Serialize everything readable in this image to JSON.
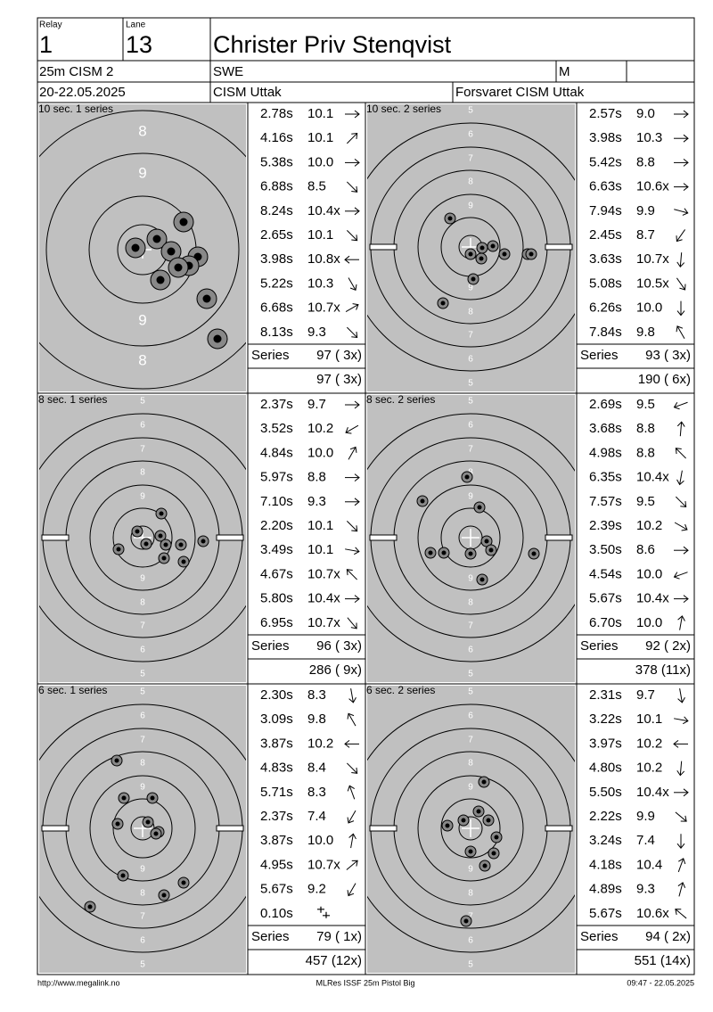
{
  "header": {
    "relay_label": "Relay",
    "relay": "1",
    "lane_label": "Lane",
    "lane": "13",
    "name": "Christer Priv Stenqvist",
    "event": "25m CISM 2",
    "nation": "SWE",
    "gender": "M",
    "date": "20-22.05.2025",
    "club": "CISM Uttak",
    "team": "Forsvaret CISM Uttak"
  },
  "series": [
    {
      "title": "10 sec. 1 series",
      "ring_labels_top": [
        "8",
        "9"
      ],
      "ring_labels_bottom": [
        "9",
        "8"
      ],
      "shots": [
        {
          "time": "2.78s",
          "score": "10.1"
        },
        {
          "time": "4.16s",
          "score": "10.1"
        },
        {
          "time": "5.38s",
          "score": "10.0"
        },
        {
          "time": "6.88s",
          "score": "8.5"
        },
        {
          "time": "8.24s",
          "score": "10.4x"
        },
        {
          "time": "2.65s",
          "score": "10.1"
        },
        {
          "time": "3.98s",
          "score": "10.8x"
        },
        {
          "time": "5.22s",
          "score": "10.3"
        },
        {
          "time": "6.68s",
          "score": "10.7x"
        },
        {
          "time": "8.13s",
          "score": "9.3"
        }
      ],
      "series_label": "Series",
      "series_total": "97 ( 3x)",
      "cumulative": "97 ( 3x)"
    },
    {
      "title": "10 sec. 2 series",
      "ring_labels_top": [
        "5",
        "6",
        "7",
        "8",
        "9"
      ],
      "ring_labels_bottom": [
        "9",
        "8",
        "7",
        "6",
        "5"
      ],
      "shots": [
        {
          "time": "2.57s",
          "score": "9.0"
        },
        {
          "time": "3.98s",
          "score": "10.3"
        },
        {
          "time": "5.42s",
          "score": "8.8"
        },
        {
          "time": "6.63s",
          "score": "10.6x"
        },
        {
          "time": "7.94s",
          "score": "9.9"
        },
        {
          "time": "2.45s",
          "score": "8.7"
        },
        {
          "time": "3.63s",
          "score": "10.7x"
        },
        {
          "time": "5.08s",
          "score": "10.5x"
        },
        {
          "time": "6.26s",
          "score": "10.0"
        },
        {
          "time": "7.84s",
          "score": "9.8"
        }
      ],
      "series_label": "Series",
      "series_total": "93 ( 3x)",
      "cumulative": "190 ( 6x)"
    },
    {
      "title": "8 sec. 1 series",
      "ring_labels_top": [
        "5",
        "6",
        "7",
        "8",
        "9"
      ],
      "ring_labels_bottom": [
        "9",
        "8",
        "7",
        "6",
        "5"
      ],
      "shots": [
        {
          "time": "2.37s",
          "score": "9.7"
        },
        {
          "time": "3.52s",
          "score": "10.2"
        },
        {
          "time": "4.84s",
          "score": "10.0"
        },
        {
          "time": "5.97s",
          "score": "8.8"
        },
        {
          "time": "7.10s",
          "score": "9.3"
        },
        {
          "time": "2.20s",
          "score": "10.1"
        },
        {
          "time": "3.49s",
          "score": "10.1"
        },
        {
          "time": "4.67s",
          "score": "10.7x"
        },
        {
          "time": "5.80s",
          "score": "10.4x"
        },
        {
          "time": "6.95s",
          "score": "10.7x"
        }
      ],
      "series_label": "Series",
      "series_total": "96 ( 3x)",
      "cumulative": "286 ( 9x)"
    },
    {
      "title": "8 sec. 2 series",
      "ring_labels_top": [
        "5",
        "6",
        "7",
        "8",
        "9"
      ],
      "ring_labels_bottom": [
        "9",
        "8",
        "7",
        "6",
        "5"
      ],
      "shots": [
        {
          "time": "2.69s",
          "score": "9.5"
        },
        {
          "time": "3.68s",
          "score": "8.8"
        },
        {
          "time": "4.98s",
          "score": "8.8"
        },
        {
          "time": "6.35s",
          "score": "10.4x"
        },
        {
          "time": "7.57s",
          "score": "9.5"
        },
        {
          "time": "2.39s",
          "score": "10.2"
        },
        {
          "time": "3.50s",
          "score": "8.6"
        },
        {
          "time": "4.54s",
          "score": "10.0"
        },
        {
          "time": "5.67s",
          "score": "10.4x"
        },
        {
          "time": "6.70s",
          "score": "10.0"
        }
      ],
      "series_label": "Series",
      "series_total": "92 ( 2x)",
      "cumulative": "378 (11x)"
    },
    {
      "title": "6 sec. 1 series",
      "ring_labels_top": [
        "5",
        "6",
        "7",
        "8",
        "9"
      ],
      "ring_labels_bottom": [
        "9",
        "8",
        "7",
        "6",
        "5"
      ],
      "shots": [
        {
          "time": "2.30s",
          "score": "8.3"
        },
        {
          "time": "3.09s",
          "score": "9.8"
        },
        {
          "time": "3.87s",
          "score": "10.2"
        },
        {
          "time": "4.83s",
          "score": "8.4"
        },
        {
          "time": "5.71s",
          "score": "8.3"
        },
        {
          "time": "2.37s",
          "score": "7.4"
        },
        {
          "time": "3.87s",
          "score": "10.0"
        },
        {
          "time": "4.95s",
          "score": "10.7x"
        },
        {
          "time": "5.67s",
          "score": "9.2"
        },
        {
          "time": "0.10s"
        }
      ],
      "series_label": "Series",
      "series_total": "79 ( 1x)",
      "cumulative": "457 (12x)"
    },
    {
      "title": "6 sec. 2 series",
      "ring_labels_top": [
        "5",
        "6",
        "7",
        "8",
        "9"
      ],
      "ring_labels_bottom": [
        "9",
        "8",
        "7",
        "6",
        "5"
      ],
      "shots": [
        {
          "time": "2.31s",
          "score": "9.7"
        },
        {
          "time": "3.22s",
          "score": "10.1"
        },
        {
          "time": "3.97s",
          "score": "10.2"
        },
        {
          "time": "4.80s",
          "score": "10.2"
        },
        {
          "time": "5.50s",
          "score": "10.4x"
        },
        {
          "time": "2.22s",
          "score": "9.9"
        },
        {
          "time": "3.24s",
          "score": "7.4"
        },
        {
          "time": "4.18s",
          "score": "10.4"
        },
        {
          "time": "4.89s",
          "score": "9.3"
        },
        {
          "time": "5.67s",
          "score": "10.6x"
        }
      ],
      "series_label": "Series",
      "series_total": "94 ( 2x)",
      "cumulative": "551 (14x)"
    }
  ],
  "footer": {
    "url": "http://www.megalink.no",
    "software": "MLRes ISSF 25m Pistol Big",
    "timestamp": "09:47 - 22.05.2025"
  }
}
